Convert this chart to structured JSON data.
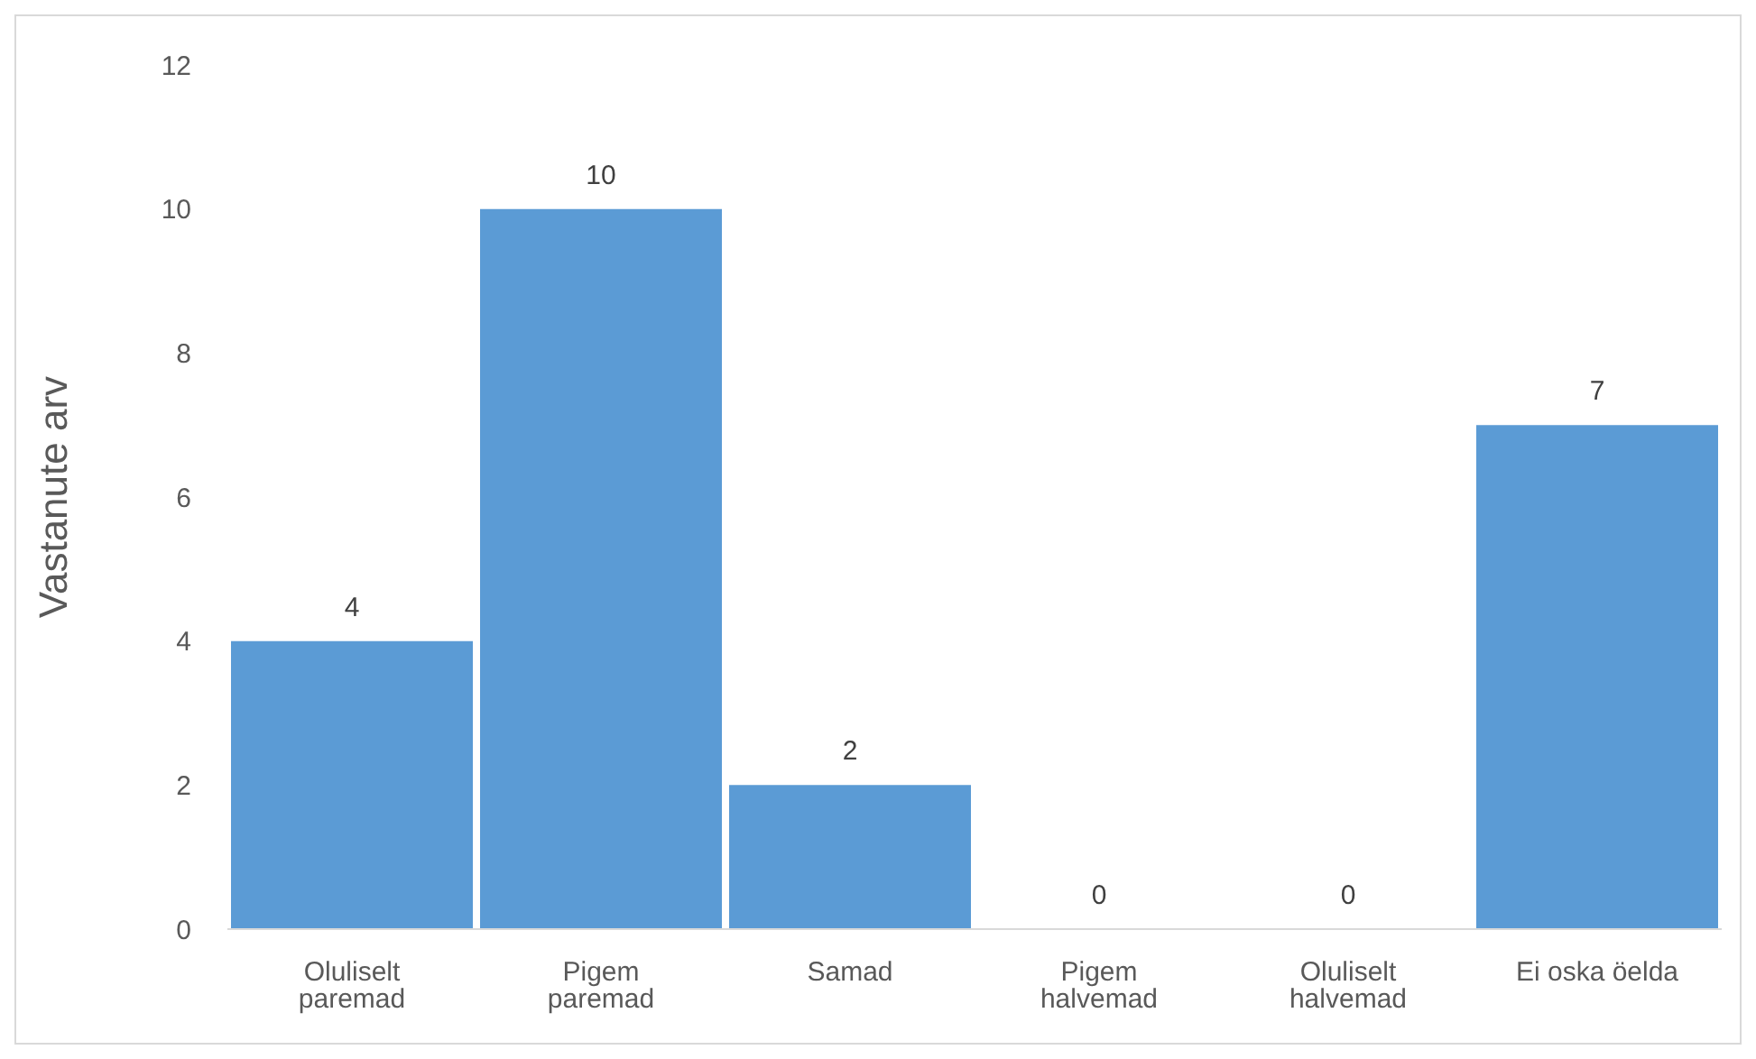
{
  "chart_data": {
    "type": "bar",
    "ylabel": "Vastanute arv",
    "categories": [
      "Oluliselt paremad",
      "Pigem paremad",
      "Samad",
      "Pigem halvemad",
      "Oluliselt halvemad",
      "Ei oska öelda"
    ],
    "values": [
      4,
      10,
      2,
      0,
      0,
      7
    ],
    "color": "#5b9bd5",
    "ylim": [
      0,
      12
    ],
    "yticks": [
      0,
      2,
      4,
      6,
      8,
      10,
      12
    ],
    "grid": false,
    "data_labels": true,
    "legend": false
  }
}
